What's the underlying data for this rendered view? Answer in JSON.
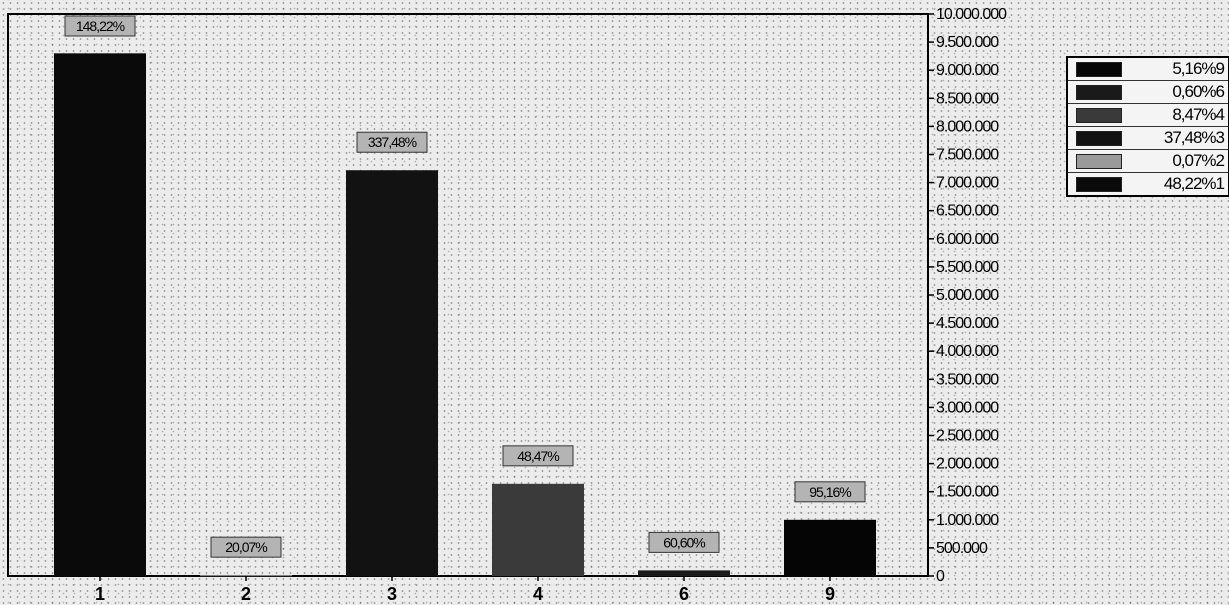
{
  "chart_data": {
    "type": "bar",
    "categories": [
      "1",
      "2",
      "3",
      "4",
      "6",
      "9"
    ],
    "values": [
      9300000,
      15000,
      7220000,
      1640000,
      100000,
      1000000
    ],
    "data_labels": [
      "148,22%",
      "20,07%",
      "337,48%",
      "48,47%",
      "60,60%",
      "95,16%"
    ],
    "bar_colors": [
      "#0a0a0a",
      "#9a9a9a",
      "#121212",
      "#3a3a3a",
      "#1a1a1a",
      "#050505"
    ],
    "label_box_color": "#b4b4b4",
    "ylim": [
      0,
      10000000
    ],
    "y_ticks": [
      "0",
      "500.000",
      "1.000.000",
      "1.500.000",
      "2.000.000",
      "2.500.000",
      "3.000.000",
      "3.500.000",
      "4.000.000",
      "4.500.000",
      "5.000.000",
      "5.500.000",
      "6.000.000",
      "6.500.000",
      "7.000.000",
      "7.500.000",
      "8.000.000",
      "8.500.000",
      "9.000.000",
      "9.500.000",
      "10.000.000"
    ],
    "y_axis_side": "right",
    "grid": false,
    "legend_placement": "right",
    "legend": [
      {
        "label": "5,16%9",
        "color": "#050505"
      },
      {
        "label": "0,60%6",
        "color": "#1a1a1a"
      },
      {
        "label": "8,47%4",
        "color": "#3a3a3a"
      },
      {
        "label": "37,48%3",
        "color": "#121212"
      },
      {
        "label": "0,07%2",
        "color": "#9a9a9a"
      },
      {
        "label": "48,22%1",
        "color": "#0a0a0a"
      }
    ]
  }
}
